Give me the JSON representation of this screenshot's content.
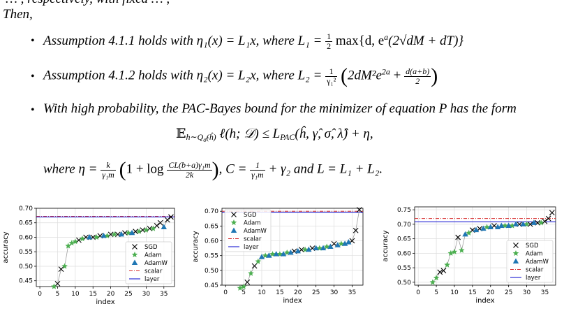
{
  "paper": {
    "top_cut": "… , respectively, with fixed … ,",
    "then": "Then,",
    "bullet1": {
      "lead": "Assumption 4.1.1 holds with",
      "math": "η₁(x) = L₁x, where L₁ =",
      "half": "1",
      "half_den": "2",
      "rest": "max{d, e",
      "rest_sup": "a",
      "rest2": "(2√dM + dT)}"
    },
    "bullet2": {
      "lead": "Assumption 4.1.2 holds with",
      "math": "η₂(x) = L₂x, where L₂ =",
      "num": "1",
      "den": "γ₁²",
      "body": "2dM²e",
      "body_sup": "2a",
      "plus": "+",
      "fnum": "d(a+b)",
      "fden": "2"
    },
    "bullet3": {
      "text": "With high probability, the PAC-Bayes bound for the minimizer of  equation P has the form"
    },
    "equation": {
      "lhs": "𝔼",
      "lhs_sub": "h∼Q",
      "lhs_sub2": "σ̂",
      "lhs_sub3": "(ĥ)",
      "mid": "ℓ(h; 𝒟) ≤ L",
      "pac": "PAC",
      "rhs": "(ĥ, γ̂, σ̂, λ̂) + η,"
    },
    "where": {
      "lead": "where η =",
      "knum": "k",
      "kden": "γ₁m",
      "log": "1 + log",
      "lnum": "CL(b+a)γ₁m",
      "lden": "2k",
      "c": ", C =",
      "cnum": "1",
      "cden": "γ₁m",
      "c_rest": "+ γ₂ and L = L₁ + L₂."
    }
  },
  "colors": {
    "sgd": "#000000",
    "adam": "#4caf50",
    "adamw": "#1f77b4",
    "scalar": "#d62728",
    "layer": "#0000cd",
    "grid": "#dddddd"
  },
  "chart_data": [
    {
      "type": "scatter",
      "xlabel": "index",
      "ylabel": "accuracy",
      "xlim": [
        -1,
        38
      ],
      "ylim": [
        0.43,
        0.7
      ],
      "xticks": [
        0,
        5,
        10,
        15,
        20,
        25,
        30,
        35
      ],
      "yticks": [
        0.45,
        0.5,
        0.55,
        0.6,
        0.65,
        0.7
      ],
      "ytick_labels": [
        "0.45",
        "0.50",
        "0.55",
        "0.60",
        "0.65",
        "0.70"
      ],
      "legend": [
        "SGD",
        "Adam",
        "AdamW",
        "scalar",
        "layer"
      ],
      "legend_position": "bottom-right",
      "hlines": {
        "scalar": 0.672,
        "layer": 0.672
      },
      "series": [
        {
          "name": "SGD",
          "marker": "x",
          "x": [
            5,
            6,
            11,
            13,
            15,
            17,
            20,
            22,
            24,
            27,
            29,
            31,
            33,
            34,
            36,
            37
          ],
          "y": [
            0.44,
            0.49,
            0.59,
            0.6,
            0.6,
            0.605,
            0.61,
            0.61,
            0.615,
            0.62,
            0.625,
            0.63,
            0.64,
            0.65,
            0.66,
            0.67
          ]
        },
        {
          "name": "Adam",
          "marker": "star",
          "x": [
            4,
            7,
            8,
            9,
            10,
            12,
            16,
            19,
            21,
            25,
            28,
            30,
            32
          ],
          "y": [
            0.43,
            0.5,
            0.57,
            0.58,
            0.585,
            0.595,
            0.6,
            0.605,
            0.61,
            0.615,
            0.62,
            0.625,
            0.63
          ]
        },
        {
          "name": "AdamW",
          "marker": "triangle",
          "x": [
            14,
            18,
            23,
            26,
            35
          ],
          "y": [
            0.6,
            0.605,
            0.61,
            0.615,
            0.635
          ]
        }
      ]
    },
    {
      "type": "scatter",
      "xlabel": "index",
      "ylabel": "accuracy",
      "xlim": [
        -1,
        38
      ],
      "ylim": [
        0.45,
        0.71
      ],
      "xticks": [
        0,
        5,
        10,
        15,
        20,
        25,
        30,
        35
      ],
      "yticks": [
        0.45,
        0.5,
        0.55,
        0.6,
        0.65,
        0.7
      ],
      "ytick_labels": [
        "0.45",
        "0.50",
        "0.55",
        "0.60",
        "0.65",
        "0.70"
      ],
      "legend": [
        "SGD",
        "Adam",
        "AdamW",
        "scalar",
        "layer"
      ],
      "legend_position": "top-left",
      "hlines": {
        "scalar": 0.7,
        "layer": 0.698
      },
      "series": [
        {
          "name": "SGD",
          "marker": "x",
          "x": [
            6,
            8,
            19,
            21,
            24,
            30,
            35,
            36,
            37
          ],
          "y": [
            0.46,
            0.515,
            0.565,
            0.57,
            0.575,
            0.59,
            0.6,
            0.635,
            0.705
          ]
        },
        {
          "name": "Adam",
          "marker": "star",
          "x": [
            4,
            5,
            7,
            9,
            11,
            13,
            15,
            17,
            22,
            26,
            28,
            32
          ],
          "y": [
            0.44,
            0.445,
            0.49,
            0.53,
            0.55,
            0.555,
            0.555,
            0.56,
            0.57,
            0.575,
            0.58,
            0.59
          ]
        },
        {
          "name": "AdamW",
          "marker": "triangle",
          "x": [
            10,
            12,
            14,
            16,
            18,
            20,
            23,
            25,
            27,
            29,
            31,
            33,
            34
          ],
          "y": [
            0.545,
            0.55,
            0.555,
            0.555,
            0.56,
            0.565,
            0.57,
            0.575,
            0.575,
            0.58,
            0.585,
            0.59,
            0.595
          ]
        }
      ]
    },
    {
      "type": "scatter",
      "xlabel": "index",
      "ylabel": "accuracy",
      "xlim": [
        -1,
        38
      ],
      "ylim": [
        0.49,
        0.76
      ],
      "xticks": [
        0,
        5,
        10,
        15,
        20,
        25,
        30,
        35
      ],
      "yticks": [
        0.5,
        0.55,
        0.6,
        0.65,
        0.7,
        0.75
      ],
      "ytick_labels": [
        "0.50",
        "0.55",
        "0.60",
        "0.65",
        "0.70",
        "0.75"
      ],
      "legend": [
        "SGD",
        "Adam",
        "AdamW",
        "scalar",
        "layer"
      ],
      "legend_position": "bottom-right",
      "hlines": {
        "scalar": 0.72,
        "layer": 0.71
      },
      "series": [
        {
          "name": "SGD",
          "marker": "x",
          "x": [
            6,
            7,
            11,
            15,
            17,
            21,
            28,
            31,
            33,
            35,
            36,
            37
          ],
          "y": [
            0.535,
            0.54,
            0.655,
            0.68,
            0.685,
            0.695,
            0.7,
            0.7,
            0.705,
            0.71,
            0.72,
            0.74
          ]
        },
        {
          "name": "Adam",
          "marker": "star",
          "x": [
            4,
            5,
            8,
            9,
            10,
            12,
            14,
            19,
            24,
            26,
            30,
            34
          ],
          "y": [
            0.5,
            0.515,
            0.56,
            0.6,
            0.605,
            0.61,
            0.67,
            0.69,
            0.695,
            0.695,
            0.7,
            0.705
          ]
        },
        {
          "name": "AdamW",
          "marker": "triangle",
          "x": [
            13,
            16,
            18,
            20,
            22,
            23,
            25,
            27,
            29,
            32
          ],
          "y": [
            0.665,
            0.68,
            0.685,
            0.69,
            0.69,
            0.695,
            0.695,
            0.7,
            0.7,
            0.705
          ]
        }
      ]
    }
  ]
}
